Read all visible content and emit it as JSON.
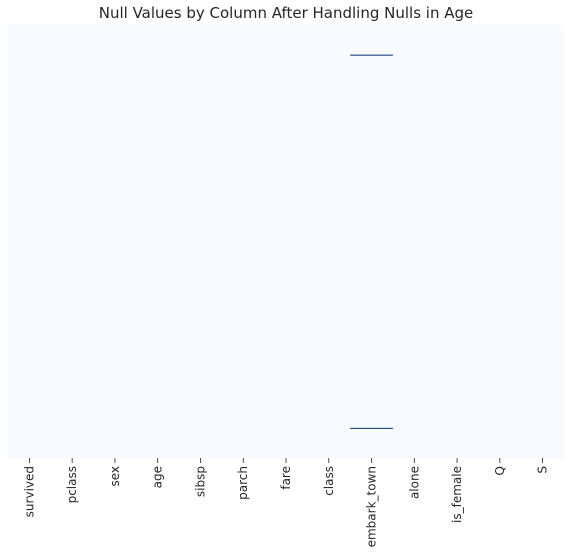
{
  "chart_data": {
    "type": "heatmap",
    "title": "Null Values by Column After Handling Nulls in Age",
    "xlabel": "",
    "ylabel": "",
    "columns": [
      "survived",
      "pclass",
      "sex",
      "age",
      "sibsp",
      "parch",
      "fare",
      "class",
      "embark_town",
      "alone",
      "is_female",
      "Q",
      "S"
    ],
    "row_count": 891,
    "null_cells": [
      {
        "column": "embark_town",
        "rows": [
          61,
          829
        ]
      }
    ],
    "value_range": [
      0,
      1
    ],
    "colors": {
      "not_null": "#f7fbff",
      "null": "#08306b"
    },
    "colorbar": false,
    "y_tick_labels_shown": false,
    "grid": false
  }
}
